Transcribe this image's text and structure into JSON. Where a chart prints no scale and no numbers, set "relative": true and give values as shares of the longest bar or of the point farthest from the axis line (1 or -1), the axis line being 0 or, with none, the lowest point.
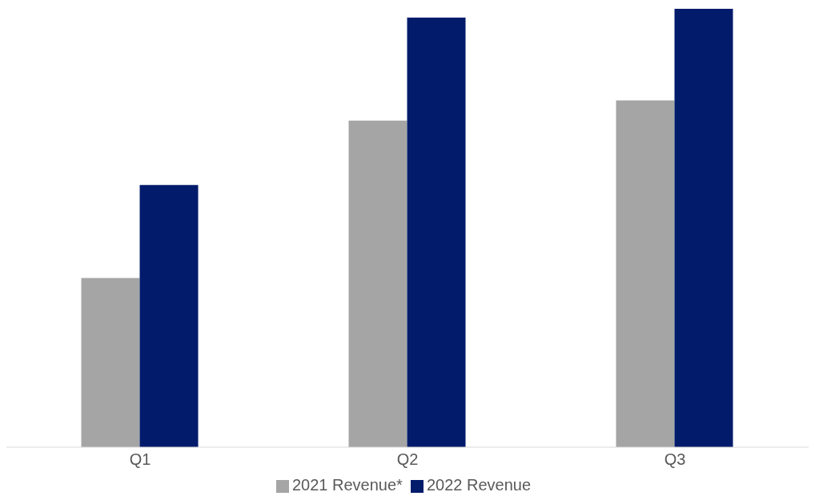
{
  "chart_data": {
    "type": "bar",
    "relative": true,
    "categories": [
      "Q1",
      "Q2",
      "Q3"
    ],
    "series": [
      {
        "name": "2021 Revenue*",
        "color": "#a5a5a5",
        "values": [
          0.386,
          0.745,
          0.791
        ]
      },
      {
        "name": "2022 Revenue",
        "color": "#021b6b",
        "values": [
          0.598,
          0.98,
          1
        ]
      }
    ],
    "legend": "bottom",
    "grid": false
  }
}
